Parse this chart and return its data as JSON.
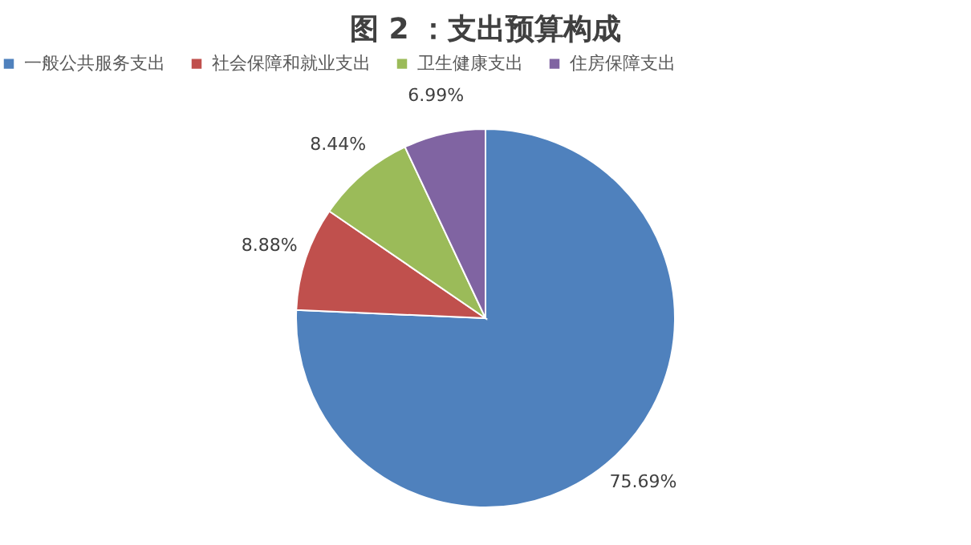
{
  "chart_data": {
    "type": "pie",
    "title": "图 2 ：支出预算构成",
    "categories": [
      "一般公共服务支出",
      "社会保障和就业支出",
      "卫生健康支出",
      "住房保障支出"
    ],
    "values": [
      75.69,
      8.88,
      8.44,
      6.99
    ],
    "colors": [
      "#4f81bd",
      "#c0504d",
      "#9bbb59",
      "#8064a2"
    ],
    "value_labels": [
      "75.69%",
      "8.88%",
      "8.44%",
      "6.99%"
    ],
    "legend": "top"
  }
}
